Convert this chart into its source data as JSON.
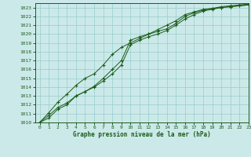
{
  "title": "Graphe pression niveau de la mer (hPa)",
  "bg_color": "#cce9e9",
  "grid_color": "#99cccc",
  "line_color": "#1a5c1a",
  "xlim": [
    -0.5,
    23
  ],
  "ylim": [
    1010,
    1023.5
  ],
  "yticks": [
    1010,
    1011,
    1012,
    1013,
    1014,
    1015,
    1016,
    1017,
    1018,
    1019,
    1020,
    1021,
    1022,
    1023
  ],
  "xticks": [
    0,
    1,
    2,
    3,
    4,
    5,
    6,
    7,
    8,
    9,
    10,
    11,
    12,
    13,
    14,
    15,
    16,
    17,
    18,
    19,
    20,
    21,
    22,
    23
  ],
  "series": [
    [
      1010.0,
      1010.8,
      1011.7,
      1012.2,
      1013.0,
      1013.5,
      1014.1,
      1015.0,
      1016.0,
      1017.0,
      1019.3,
      1019.7,
      1020.0,
      1020.3,
      1020.6,
      1021.2,
      1022.0,
      1022.4,
      1022.7,
      1022.9,
      1023.0,
      1023.1,
      1023.2,
      1023.3
    ],
    [
      1010.0,
      1010.5,
      1011.5,
      1012.0,
      1013.0,
      1013.5,
      1014.0,
      1014.7,
      1015.5,
      1016.5,
      1018.8,
      1019.3,
      1019.7,
      1020.0,
      1020.4,
      1021.0,
      1021.7,
      1022.2,
      1022.6,
      1022.8,
      1023.0,
      1023.1,
      1023.2,
      1023.3
    ],
    [
      1010.0,
      1011.1,
      1012.3,
      1013.2,
      1014.2,
      1015.0,
      1015.5,
      1016.5,
      1017.7,
      1018.5,
      1019.0,
      1019.5,
      1020.0,
      1020.5,
      1021.0,
      1021.5,
      1022.2,
      1022.5,
      1022.8,
      1022.9,
      1023.1,
      1023.2,
      1023.3,
      1023.4
    ]
  ]
}
